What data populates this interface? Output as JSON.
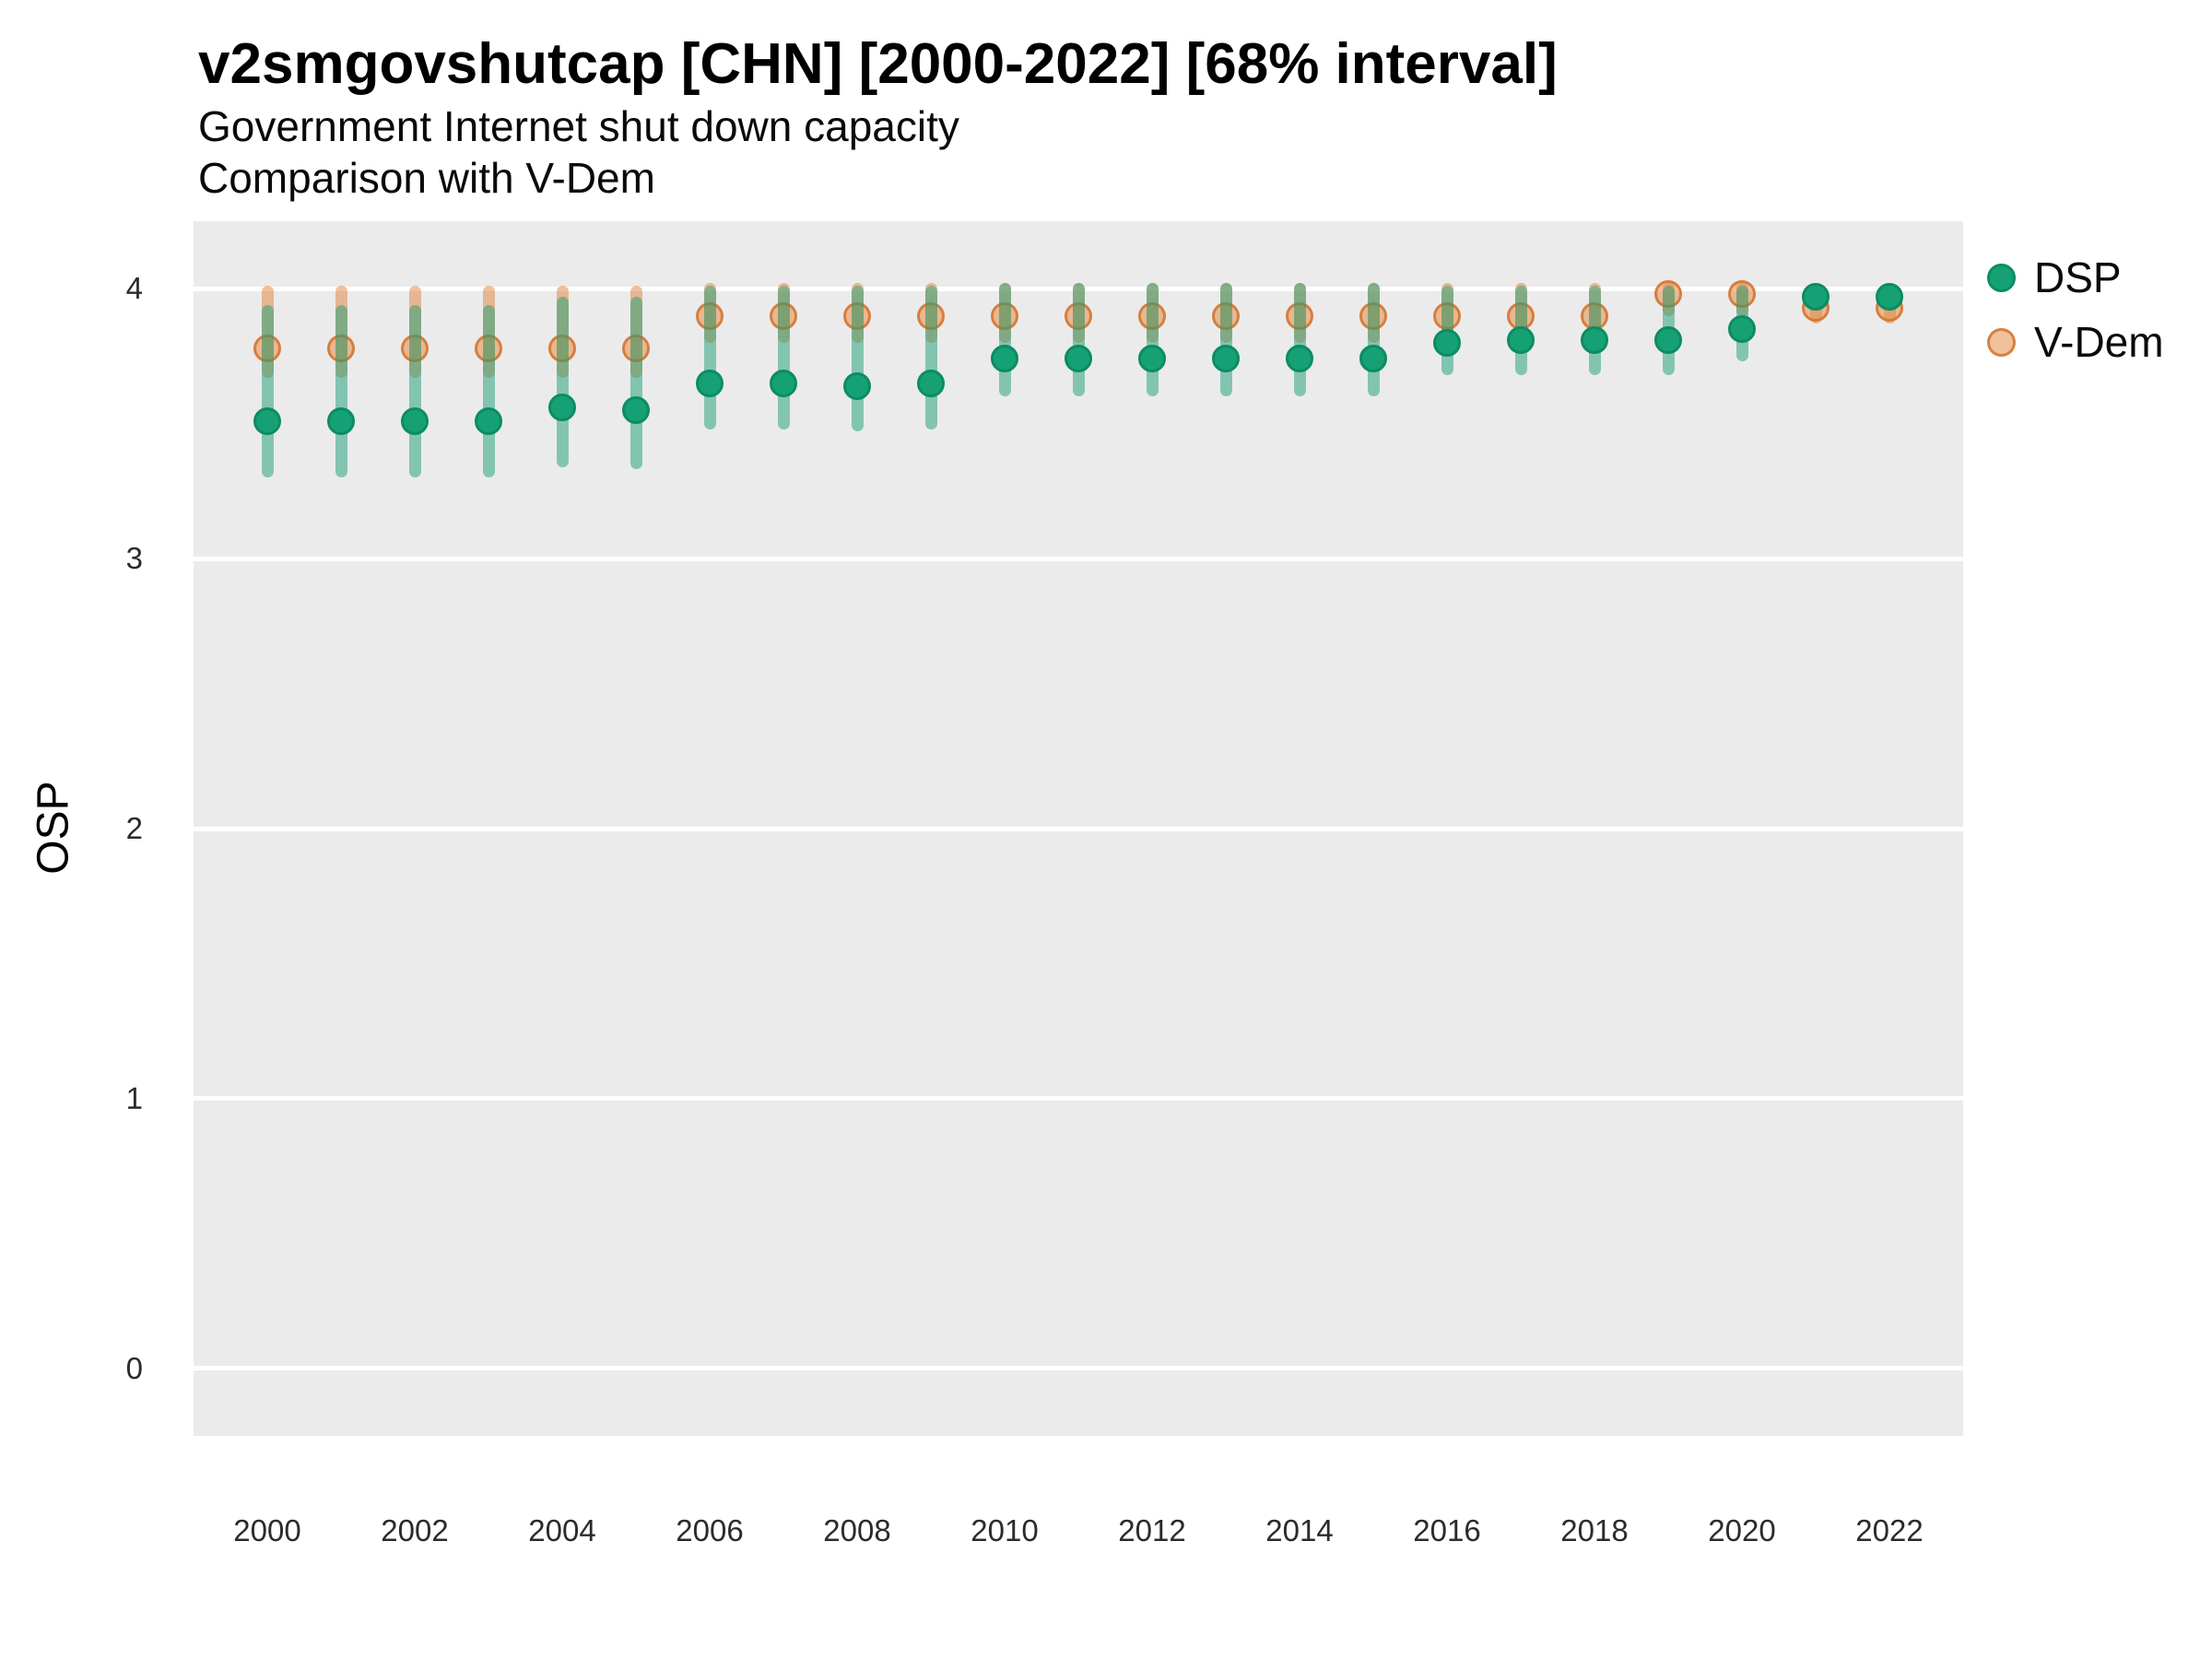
{
  "title": "v2smgovshutcap [CHN] [2000-2022] [68% interval]",
  "subtitle1": "Government Internet shut down capacity",
  "subtitle2": "Comparison with V-Dem",
  "y_axis_title": "OSP",
  "legend": {
    "items": [
      {
        "label": "DSP"
      },
      {
        "label": "V-Dem"
      }
    ]
  },
  "colors": {
    "dsp_fill": "#16A175",
    "dsp_stroke": "#0C8C63",
    "dsp_interval": "rgba(27,158,119,0.5)",
    "vdem_fill": "rgba(228,142,72,0.55)",
    "vdem_stroke": "rgba(210,110,40,0.78)",
    "vdem_interval": "rgba(224,130,55,0.5)",
    "panel_background": "#EBEBEB",
    "gridline": "#FFFFFF"
  },
  "chart_data": {
    "type": "scatter",
    "title": "v2smgovshutcap [CHN] [2000-2022] [68% interval]",
    "subtitle": "Government Internet shut down capacity — Comparison with V-Dem",
    "xlabel": "",
    "ylabel": "OSP",
    "interval": "68%",
    "grid": "horizontal-major-only",
    "legend_position": "right",
    "xlim": [
      1999,
      2023
    ],
    "ylim": [
      -0.25,
      4.25
    ],
    "y_ticks": [
      0,
      1,
      2,
      3,
      4
    ],
    "x_tick_labels": [
      "2000",
      "2002",
      "2004",
      "2006",
      "2008",
      "2010",
      "2012",
      "2014",
      "2016",
      "2018",
      "2020",
      "2022"
    ],
    "years": [
      2000,
      2001,
      2002,
      2003,
      2004,
      2005,
      2006,
      2007,
      2008,
      2009,
      2010,
      2011,
      2012,
      2013,
      2014,
      2015,
      2016,
      2017,
      2018,
      2019,
      2020,
      2021,
      2022
    ],
    "series": [
      {
        "name": "DSP",
        "estimate": [
          3.51,
          3.51,
          3.51,
          3.51,
          3.56,
          3.55,
          3.65,
          3.65,
          3.64,
          3.65,
          3.74,
          3.74,
          3.74,
          3.74,
          3.74,
          3.74,
          3.8,
          3.81,
          3.81,
          3.81,
          3.85,
          3.97,
          3.97
        ],
        "lower68": [
          3.3,
          3.3,
          3.3,
          3.3,
          3.34,
          3.33,
          3.48,
          3.48,
          3.47,
          3.48,
          3.6,
          3.6,
          3.6,
          3.6,
          3.6,
          3.6,
          3.68,
          3.68,
          3.68,
          3.68,
          3.73,
          3.92,
          3.92
        ],
        "upper68": [
          3.94,
          3.94,
          3.94,
          3.94,
          3.97,
          3.97,
          4.01,
          4.01,
          4.01,
          4.01,
          4.02,
          4.02,
          4.02,
          4.02,
          4.02,
          4.02,
          4.01,
          4.01,
          4.01,
          4.01,
          4.01,
          4.01,
          4.01
        ]
      },
      {
        "name": "V-Dem",
        "estimate": [
          3.78,
          3.78,
          3.78,
          3.78,
          3.78,
          3.78,
          3.9,
          3.9,
          3.9,
          3.9,
          3.9,
          3.9,
          3.9,
          3.9,
          3.9,
          3.9,
          3.9,
          3.9,
          3.9,
          3.98,
          3.98,
          3.93,
          3.93
        ],
        "lower68": [
          3.67,
          3.67,
          3.67,
          3.67,
          3.67,
          3.67,
          3.8,
          3.8,
          3.8,
          3.8,
          3.8,
          3.8,
          3.8,
          3.8,
          3.8,
          3.8,
          3.8,
          3.8,
          3.8,
          3.9,
          3.9,
          3.87,
          3.87
        ],
        "upper68": [
          4.01,
          4.01,
          4.01,
          4.01,
          4.01,
          4.01,
          4.02,
          4.02,
          4.02,
          4.02,
          4.02,
          4.02,
          4.02,
          4.02,
          4.02,
          4.02,
          4.02,
          4.02,
          4.02,
          4.02,
          4.02,
          3.99,
          3.99
        ]
      }
    ]
  }
}
